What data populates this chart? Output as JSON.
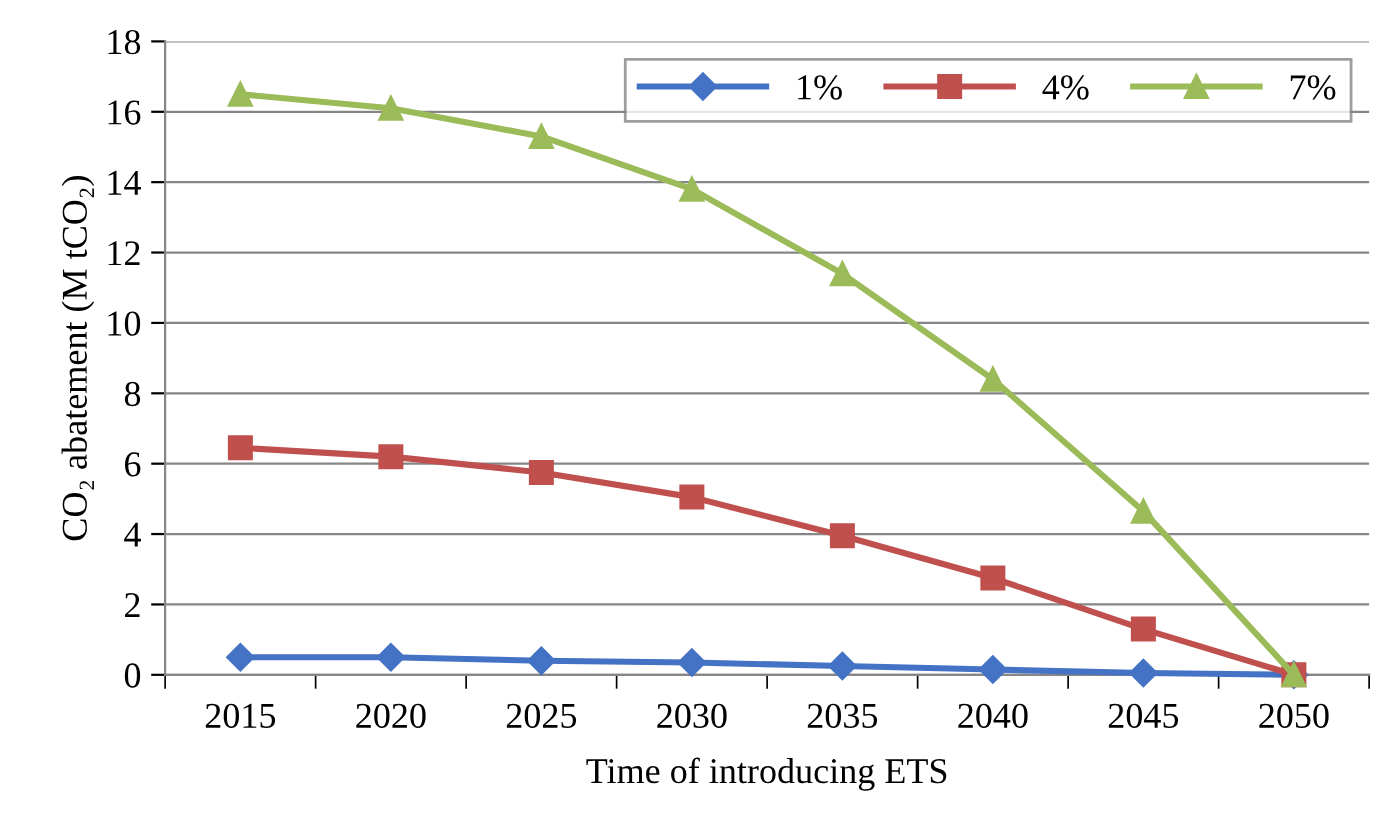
{
  "chart_data": {
    "type": "line",
    "xlabel": "Time of introducing ETS",
    "ylabel": "CO₂ abatement (M tCO₂)",
    "categories": [
      "2015",
      "2020",
      "2025",
      "2030",
      "2035",
      "2040",
      "2045",
      "2050"
    ],
    "series": [
      {
        "name": "1%",
        "color": "#4472c4",
        "marker": "diamond",
        "values": [
          0.5,
          0.5,
          0.4,
          0.35,
          0.25,
          0.15,
          0.05,
          0
        ]
      },
      {
        "name": "4%",
        "color": "#c0504d",
        "marker": "square",
        "values": [
          6.45,
          6.2,
          5.75,
          5.05,
          3.95,
          2.75,
          1.3,
          0
        ]
      },
      {
        "name": "7%",
        "color": "#9bbb59",
        "marker": "triangle",
        "values": [
          16.5,
          16.1,
          15.3,
          13.8,
          11.4,
          8.4,
          4.65,
          0
        ]
      }
    ],
    "ylim": [
      0,
      18
    ],
    "yticks": [
      0,
      2,
      4,
      6,
      8,
      10,
      12,
      14,
      16,
      18
    ],
    "grid": "y",
    "legend": "top right",
    "line_style": "solid"
  }
}
